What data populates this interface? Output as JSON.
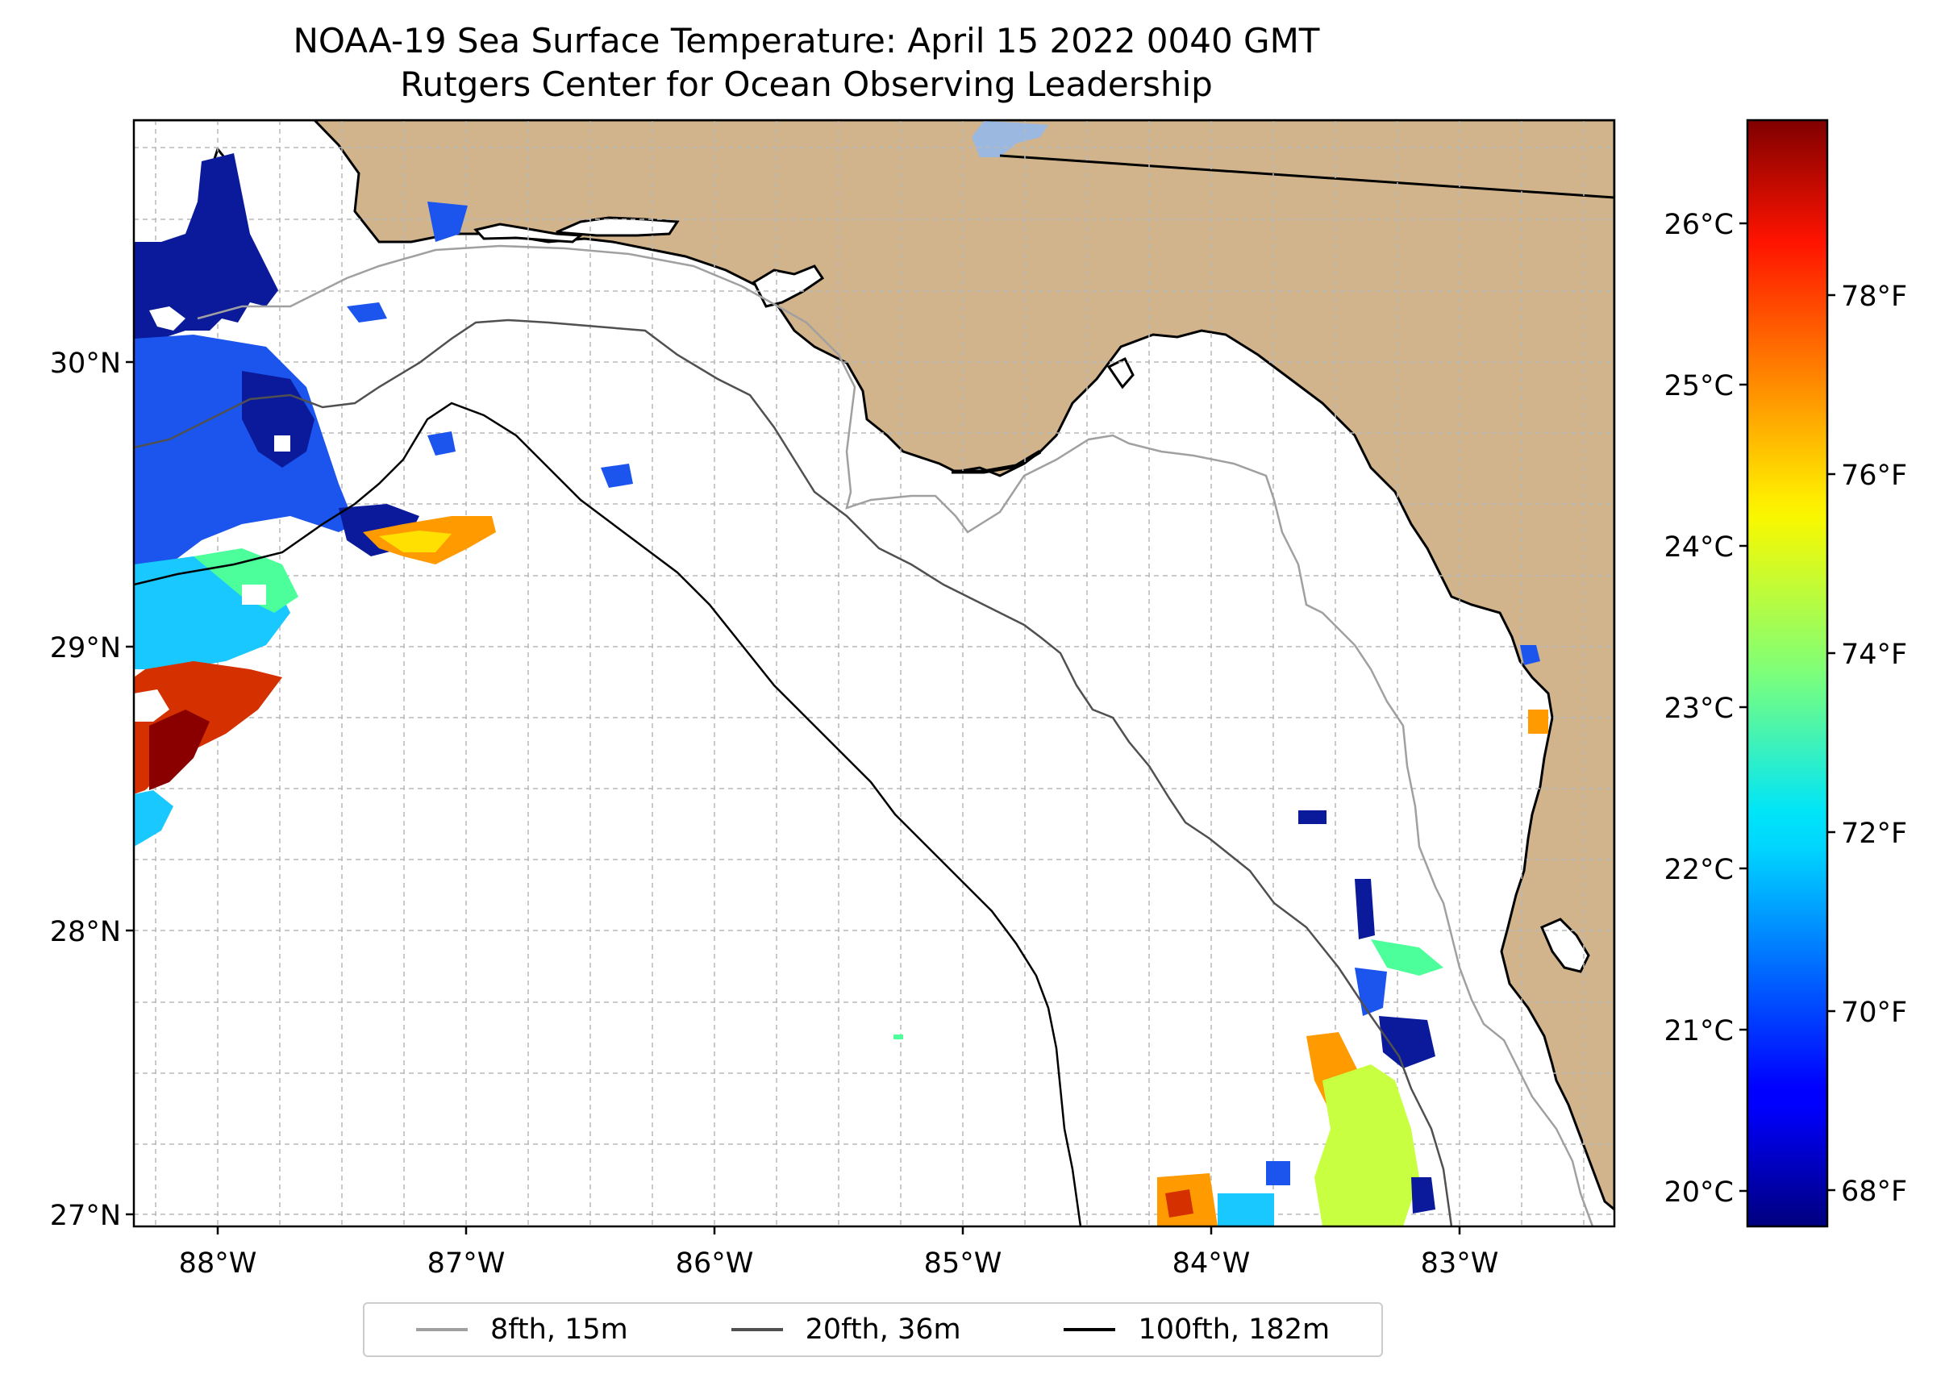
{
  "map": {
    "title_line1": "NOAA-19 Sea Surface Temperature: April 15 2022 0040 GMT",
    "title_line2": "Rutgers Center for Ocean Observing Leadership",
    "lat_labels": [
      "30°N",
      "29°N",
      "28°N",
      "27°N"
    ],
    "lon_labels": [
      "88°W",
      "87°W",
      "86°W",
      "85°W",
      "84°W",
      "83°W"
    ],
    "colorbar": {
      "celsius_labels": [
        "26°C",
        "25°C",
        "24°C",
        "23°C",
        "22°C",
        "21°C",
        "20°C"
      ],
      "fahrenheit_labels": [
        "78°F",
        "76°F",
        "74°F",
        "72°F",
        "70°F",
        "68°F"
      ],
      "colormap": "jet"
    },
    "legend": [
      {
        "label": "8fth, 15m",
        "color": "#a0a0a0"
      },
      {
        "label": "20fth, 36m",
        "color": "#505050"
      },
      {
        "label": "100fth, 182m",
        "color": "#000000"
      }
    ],
    "colors": {
      "land": "#d2b48c",
      "ocean": "#ffffff",
      "lake": "#9ab8e0",
      "grid": "#b8b8b8"
    }
  }
}
